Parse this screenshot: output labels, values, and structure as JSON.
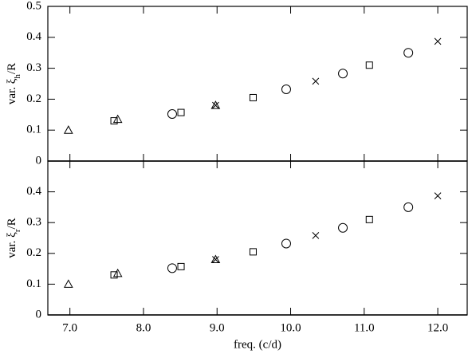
{
  "chart_data": [
    {
      "type": "scatter",
      "ylabel": [
        "var. ξ",
        "h",
        "/R"
      ],
      "xlim": [
        6.7,
        12.4
      ],
      "ylim": [
        0,
        0.5
      ],
      "yticks": [
        0,
        0.1,
        0.2,
        0.3,
        0.4,
        0.5
      ],
      "series": [
        {
          "marker": "triangle",
          "x": [
            6.98,
            7.65,
            8.98
          ],
          "values": [
            0.1,
            0.135,
            0.18
          ]
        },
        {
          "marker": "square",
          "x": [
            7.6,
            8.51,
            9.49,
            11.07
          ],
          "values": [
            0.13,
            0.157,
            0.205,
            0.31
          ]
        },
        {
          "marker": "circle",
          "x": [
            8.39,
            9.94,
            10.71,
            11.6
          ],
          "values": [
            0.152,
            0.232,
            0.283,
            0.35
          ]
        },
        {
          "marker": "cross",
          "x": [
            8.98,
            10.34,
            12.0
          ],
          "values": [
            0.18,
            0.258,
            0.387
          ]
        }
      ]
    },
    {
      "type": "scatter",
      "ylabel": [
        "var. ξ",
        "r",
        "/R"
      ],
      "xlabel": "freq. (c/d)",
      "xlim": [
        6.7,
        12.4
      ],
      "ylim": [
        0,
        0.5
      ],
      "yticks": [
        0,
        0.1,
        0.2,
        0.3,
        0.4
      ],
      "xticks": [
        {
          "value": 7,
          "label": "7.0"
        },
        {
          "value": 8,
          "label": "8.0"
        },
        {
          "value": 9,
          "label": "9.0"
        },
        {
          "value": 10,
          "label": "10.0"
        },
        {
          "value": 11,
          "label": "11.0"
        },
        {
          "value": 12,
          "label": "12.0"
        }
      ],
      "series": [
        {
          "marker": "triangle",
          "x": [
            6.98,
            7.65,
            8.98
          ],
          "values": [
            0.1,
            0.135,
            0.18
          ]
        },
        {
          "marker": "square",
          "x": [
            7.6,
            8.51,
            9.49,
            11.07
          ],
          "values": [
            0.13,
            0.157,
            0.205,
            0.31
          ]
        },
        {
          "marker": "circle",
          "x": [
            8.39,
            9.94,
            10.71,
            11.6
          ],
          "values": [
            0.152,
            0.232,
            0.283,
            0.35
          ]
        },
        {
          "marker": "cross",
          "x": [
            8.98,
            10.34,
            12.0
          ],
          "values": [
            0.18,
            0.258,
            0.387
          ]
        }
      ]
    }
  ]
}
